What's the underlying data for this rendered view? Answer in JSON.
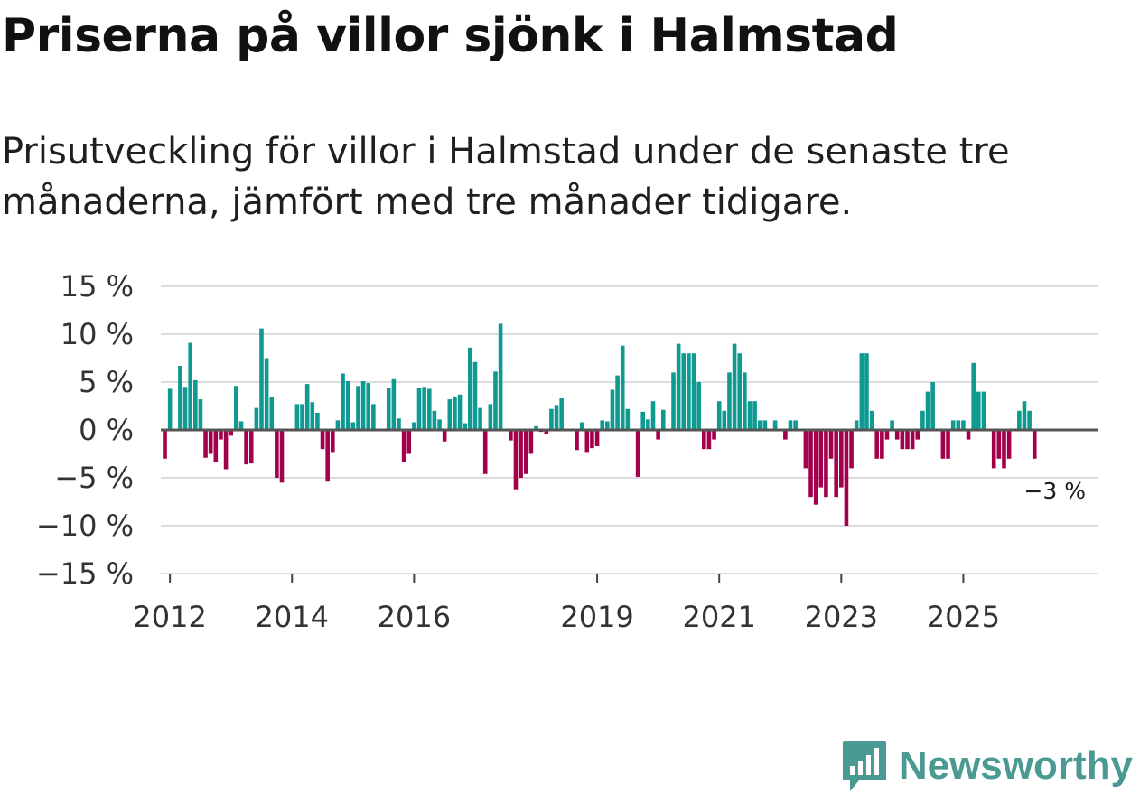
{
  "title": "Priserna på villor sjönk i Halmstad",
  "subtitle": "Prisutveckling för villor i Halmstad under de senaste tre månaderna, jämfört med tre månader tidigare.",
  "logo": {
    "text": "Newsworthy",
    "icon": "newsworthy-chart-icon"
  },
  "colors": {
    "positive": "#0e9a91",
    "negative": "#a3004b",
    "grid": "#dcdcdc",
    "zero": "#555555",
    "logo": "#4a9a93"
  },
  "chart_data": {
    "type": "bar",
    "title": "Priserna på villor sjönk i Halmstad",
    "xlabel": "",
    "ylabel": "",
    "ylim": [
      -15,
      15
    ],
    "y_ticks": [
      15,
      10,
      5,
      0,
      -5,
      -10,
      -15
    ],
    "y_tick_labels": [
      "15 %",
      "10 %",
      "5 %",
      "0 %",
      "−5 %",
      "−10 %",
      "−15 %"
    ],
    "x_ticks": [
      {
        "label": "2012",
        "index": 5
      },
      {
        "label": "2014",
        "index": 29
      },
      {
        "label": "2016",
        "index": 53
      },
      {
        "label": "2019",
        "index": 89
      },
      {
        "label": "2021",
        "index": 113
      },
      {
        "label": "2023",
        "index": 137
      },
      {
        "label": "2025",
        "index": 161
      }
    ],
    "first_period": "2011-12",
    "last_label": "−3 %",
    "values": [
      0,
      0,
      0,
      0,
      -3,
      4.3,
      0,
      6.7,
      4.5,
      9.1,
      5.2,
      3.2,
      -2.9,
      -2.5,
      -3.4,
      -1,
      -4.1,
      -0.6,
      4.6,
      0.9,
      -3.6,
      -3.5,
      2.3,
      10.6,
      7.5,
      3.4,
      -5,
      -5.5,
      0,
      0,
      2.7,
      2.7,
      4.8,
      2.9,
      1.8,
      -2,
      -5.4,
      -2.3,
      1,
      5.9,
      5.1,
      0.8,
      4.6,
      5.1,
      4.9,
      2.7,
      0,
      0,
      4.4,
      5.3,
      1.2,
      -3.3,
      -2.5,
      0.8,
      4.4,
      4.5,
      4.3,
      2,
      1.1,
      -1.2,
      3.2,
      3.5,
      3.7,
      0.7,
      8.6,
      7.1,
      2.3,
      -4.6,
      2.7,
      6.1,
      11.1,
      0,
      -1.1,
      -6.2,
      -5,
      -4.6,
      -2.5,
      0.4,
      -0.2,
      -0.4,
      2.2,
      2.6,
      3.3,
      0,
      0,
      -2.1,
      0.8,
      -2.3,
      -1.9,
      -1.7,
      1,
      0.9,
      4.2,
      5.7,
      8.8,
      2.2,
      0,
      -4.9,
      1.9,
      1.1,
      3,
      -1,
      2.1,
      0,
      6,
      9,
      8,
      8,
      8,
      5,
      -2,
      -2,
      -1,
      3,
      2,
      6,
      9,
      8,
      6,
      3,
      3,
      1,
      1,
      0,
      1,
      0,
      -1,
      1,
      1,
      0,
      -4,
      -7,
      -7.8,
      -6,
      -7,
      -3,
      -7,
      -6,
      -10,
      -4,
      1,
      8,
      8,
      2,
      -3,
      -3,
      -1,
      1,
      -1,
      -2,
      -2,
      -2,
      -1,
      2,
      4,
      5,
      0,
      -3,
      -3,
      1,
      1,
      1,
      -1,
      7,
      4,
      4,
      0,
      -4,
      -3,
      -4,
      -3,
      0,
      2,
      3,
      2,
      -3
    ]
  }
}
